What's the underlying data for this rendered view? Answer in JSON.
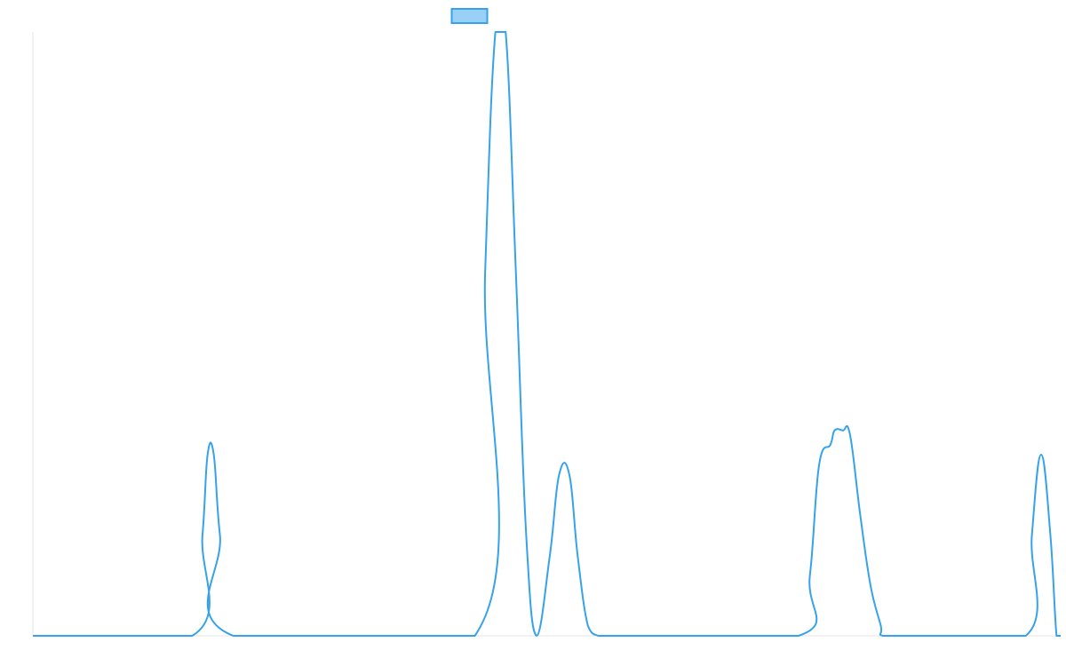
{
  "chart_data": {
    "type": "line",
    "title": "",
    "xlabel": "",
    "ylabel": "",
    "xlim": [
      0,
      100
    ],
    "ylim": [
      0,
      3
    ],
    "grid": false,
    "legend": {
      "placement": "top-center",
      "entries": [
        {
          "name": "",
          "color": "#36a2eb",
          "fill": "#9ad0f5"
        }
      ]
    },
    "series": [
      {
        "name": "",
        "color": "#36a2eb",
        "x": [
          0,
          15.5,
          16.5,
          17,
          17.6,
          18.2,
          19.5,
          43,
          44,
          45,
          46,
          47,
          48,
          49,
          50.3,
          51.2,
          52.2,
          53,
          54,
          55,
          56,
          57,
          58.4,
          74.5,
          75.6,
          76.5,
          77.6,
          78,
          78.8,
          79.5,
          80.5,
          81.5,
          82.5,
          82.7,
          85.5,
          96.6,
          97.2,
          98.1,
          99,
          99.6,
          100
        ],
        "y": [
          0,
          0,
          0.5,
          0.9,
          0.9,
          0.5,
          0,
          0,
          1.8,
          3,
          3,
          1.8,
          0.5,
          0,
          0.4,
          0.8,
          0.8,
          0.4,
          0.05,
          0,
          0,
          0,
          0,
          0,
          0.3,
          0.85,
          0.95,
          1.02,
          1.02,
          1.0,
          0.6,
          0.25,
          0.05,
          0,
          0,
          0,
          0.5,
          0.9,
          0.5,
          0,
          0
        ]
      }
    ]
  }
}
